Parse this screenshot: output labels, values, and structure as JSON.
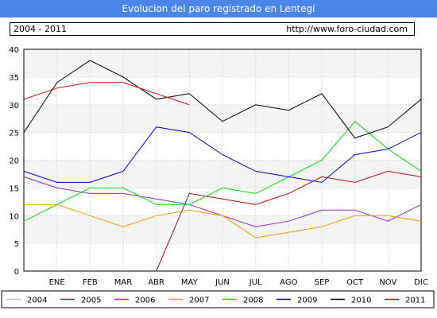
{
  "header": {
    "title": "Evolucion del paro registrado en Lentegí",
    "period": "2004 - 2011",
    "site": "http://www.foro-ciudad.com"
  },
  "chart_data": {
    "type": "line",
    "categories": [
      "",
      "ENE",
      "FEB",
      "MAR",
      "ABR",
      "MAY",
      "JUN",
      "JUL",
      "AGO",
      "SEP",
      "OCT",
      "NOV",
      "DIC"
    ],
    "ylim": [
      0,
      40
    ],
    "yticks": [
      0,
      5,
      10,
      15,
      20,
      25,
      30,
      35,
      40
    ],
    "grid": true,
    "legend_position": "bottom",
    "series": [
      {
        "name": "2004",
        "color": "#c0c0c0",
        "values": [
          null,
          null,
          null,
          null,
          null,
          null,
          null,
          null,
          null,
          null,
          null,
          null,
          null
        ]
      },
      {
        "name": "2005",
        "color": "#aa1111",
        "values": [
          null,
          null,
          null,
          null,
          0,
          14,
          13,
          12,
          14,
          17,
          16,
          18,
          17
        ]
      },
      {
        "name": "2006",
        "color": "#9922dd",
        "values": [
          17,
          15,
          14,
          14,
          13,
          12,
          10,
          8,
          9,
          11,
          11,
          9,
          12
        ]
      },
      {
        "name": "2007",
        "color": "#ff9900",
        "values": [
          12,
          12,
          10,
          8,
          10,
          11,
          10,
          6,
          7,
          8,
          10,
          10,
          9
        ]
      },
      {
        "name": "2008",
        "color": "#00dd00",
        "values": [
          9,
          12,
          15,
          15,
          12,
          12,
          15,
          14,
          17,
          20,
          27,
          22,
          18
        ]
      },
      {
        "name": "2009",
        "color": "#0000dd",
        "values": [
          18,
          16,
          16,
          18,
          26,
          25,
          21,
          18,
          17,
          16,
          21,
          22,
          25
        ]
      },
      {
        "name": "2010",
        "color": "#000000",
        "values": [
          25,
          34,
          38,
          35,
          31,
          32,
          27,
          30,
          29,
          32,
          24,
          26,
          31
        ]
      },
      {
        "name": "2011",
        "color": "#dd0000",
        "values": [
          31,
          33,
          34,
          34,
          32,
          30,
          null,
          null,
          null,
          null,
          null,
          null,
          null
        ]
      }
    ]
  }
}
